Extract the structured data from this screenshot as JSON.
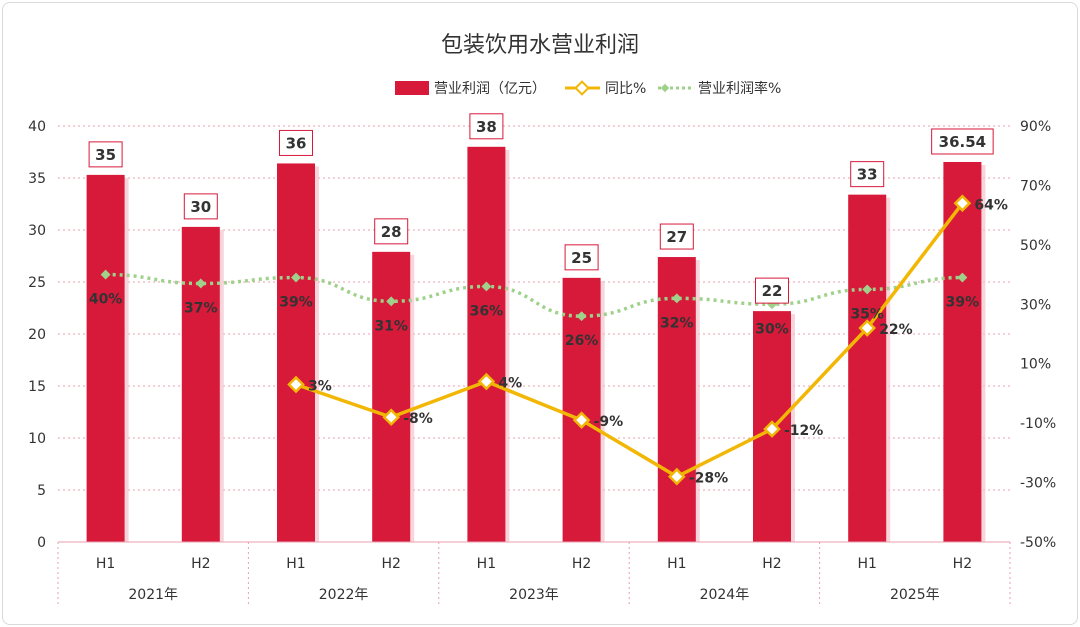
{
  "chart_data": {
    "type": "bar",
    "title": "包装饮用水营业利润",
    "years": [
      "2021年",
      "2022年",
      "2023年",
      "2024年",
      "2025年"
    ],
    "categories": [
      "H1",
      "H2",
      "H1",
      "H2",
      "H1",
      "H2",
      "H1",
      "H2",
      "H1",
      "H2"
    ],
    "y_left": {
      "min": 0,
      "max": 40,
      "step": 5,
      "ticks": [
        "0",
        "5",
        "10",
        "15",
        "20",
        "25",
        "30",
        "35",
        "40"
      ]
    },
    "y_right": {
      "min": -50,
      "max": 90,
      "step": 20,
      "ticks": [
        "-50%",
        "-30%",
        "-10%",
        "10%",
        "30%",
        "50%",
        "70%",
        "90%"
      ]
    },
    "legend": [
      "营业利润（亿元）",
      "同比%",
      "营业利润率%"
    ],
    "series": [
      {
        "name": "营业利润（亿元）",
        "type": "bar",
        "color": "#d7193a",
        "values": [
          35.3,
          30.3,
          36.4,
          27.9,
          38.0,
          25.4,
          27.4,
          22.2,
          33.4,
          36.54
        ],
        "labels": [
          "35",
          "30",
          "36",
          "28",
          "38",
          "25",
          "27",
          "22",
          "33",
          "36.54"
        ]
      },
      {
        "name": "同比%",
        "type": "line",
        "color": "#f2b705",
        "axis": "right",
        "values": [
          null,
          null,
          3,
          -8,
          4,
          -9,
          -28,
          -12,
          22,
          64
        ],
        "labels": [
          "",
          "",
          "3%",
          "-8%",
          "4%",
          "-9%",
          "-28%",
          "-12%",
          "22%",
          "64%"
        ]
      },
      {
        "name": "营业利润率%",
        "type": "line",
        "color": "#9fd18b",
        "axis": "right",
        "values": [
          40,
          37,
          39,
          31,
          36,
          26,
          32,
          30,
          35,
          39
        ],
        "labels": [
          "40%",
          "37%",
          "39%",
          "31%",
          "36%",
          "26%",
          "32%",
          "30%",
          "35%",
          "39%"
        ]
      }
    ]
  }
}
